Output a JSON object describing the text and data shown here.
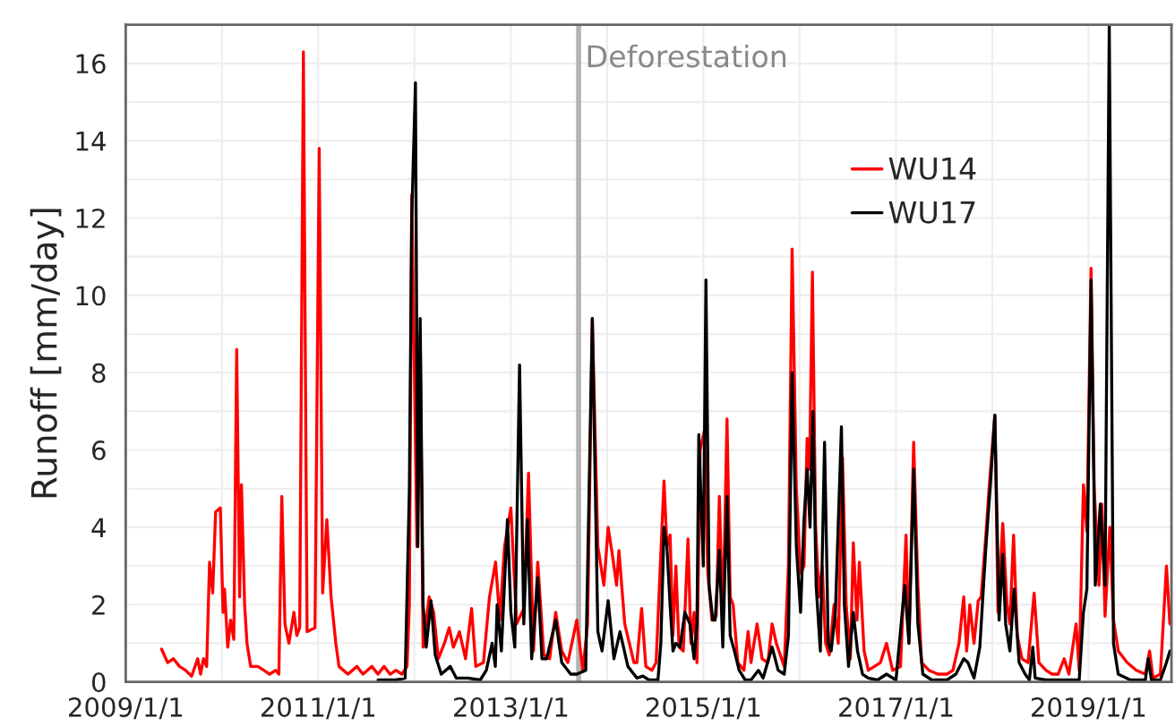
{
  "chart_data": {
    "type": "line",
    "ylabel": "Runoff [mm/day]",
    "xlim": [
      "2009-01-01",
      "2019-11-12"
    ],
    "xticks": [
      {
        "value": "2009-01-01",
        "label": "2009/1/1"
      },
      {
        "value": "2010-01-01",
        "label": null
      },
      {
        "value": "2011-01-01",
        "label": "2011/1/1"
      },
      {
        "value": "2012-01-01",
        "label": null
      },
      {
        "value": "2013-01-01",
        "label": "2013/1/1"
      },
      {
        "value": "2014-01-01",
        "label": null
      },
      {
        "value": "2015-01-01",
        "label": "2015/1/1"
      },
      {
        "value": "2016-01-01",
        "label": null
      },
      {
        "value": "2017-01-01",
        "label": "2017/1/1"
      },
      {
        "value": "2018-01-01",
        "label": null
      },
      {
        "value": "2019-01-01",
        "label": "2019/1/1"
      }
    ],
    "ylim": [
      0,
      17
    ],
    "yticks": [
      0,
      {
        "value": 1,
        "label": null
      },
      2,
      {
        "value": 3,
        "label": null
      },
      4,
      {
        "value": 5,
        "label": null
      },
      6,
      {
        "value": 7,
        "label": null
      },
      8,
      {
        "value": 9,
        "label": null
      },
      10,
      {
        "value": 11,
        "label": null
      },
      12,
      {
        "value": 13,
        "label": null
      },
      14,
      {
        "value": 15,
        "label": null
      },
      16
    ],
    "grid": true,
    "legend": "top right",
    "marker": "none",
    "line_style": "solid",
    "ref_lines": [
      {
        "axis": "x",
        "value": "2013-09-15",
        "label": "Deforestation",
        "color": "#b3b3b3"
      }
    ],
    "series": [
      {
        "name": "WU14",
        "color": "#ff0000",
        "x": [
          "2009-05-17",
          "2009-06-09",
          "2009-07-01",
          "2009-07-24",
          "2009-08-16",
          "2009-09-08",
          "2009-10-01",
          "2009-10-12",
          "2009-10-23",
          "2009-11-04",
          "2009-11-15",
          "2009-11-27",
          "2009-12-08",
          "2009-12-26",
          "2010-01-05",
          "2010-01-11",
          "2010-01-23",
          "2010-02-03",
          "2010-02-15",
          "2010-02-26",
          "2010-03-09",
          "2010-03-16",
          "2010-03-28",
          "2010-04-06",
          "2010-04-20",
          "2010-05-17",
          "2010-06-09",
          "2010-07-01",
          "2010-07-24",
          "2010-08-05",
          "2010-08-16",
          "2010-08-28",
          "2010-09-12",
          "2010-10-01",
          "2010-10-12",
          "2010-10-23",
          "2010-11-06",
          "2010-11-20",
          "2010-12-20",
          "2011-01-05",
          "2011-01-18",
          "2011-02-03",
          "2011-02-19",
          "2011-03-09",
          "2011-03-21",
          "2011-04-24",
          "2011-05-28",
          "2011-06-20",
          "2011-07-24",
          "2011-08-16",
          "2011-09-08",
          "2011-10-01",
          "2011-10-23",
          "2011-11-15",
          "2011-12-04",
          "2011-12-13",
          "2011-12-22",
          "2012-01-11",
          "2012-01-23",
          "2012-02-03",
          "2012-02-26",
          "2012-03-14",
          "2012-04-01",
          "2012-04-24",
          "2012-05-12",
          "2012-05-28",
          "2012-06-20",
          "2012-07-13",
          "2012-08-05",
          "2012-08-21",
          "2012-09-19",
          "2012-10-12",
          "2012-11-04",
          "2012-11-20",
          "2012-12-08",
          "2013-01-01",
          "2013-01-23",
          "2013-02-03",
          "2013-02-19",
          "2013-03-09",
          "2013-03-28",
          "2013-04-13",
          "2013-05-06",
          "2013-05-28",
          "2013-06-20",
          "2013-07-13",
          "2013-08-05",
          "2013-09-08",
          "2013-10-01",
          "2013-10-19",
          "2013-11-06",
          "2013-11-27",
          "2013-12-20",
          "2014-01-05",
          "2014-01-23",
          "2014-02-06",
          "2014-02-15",
          "2014-03-09",
          "2014-04-13",
          "2014-04-24",
          "2014-05-12",
          "2014-05-28",
          "2014-06-20",
          "2014-07-06",
          "2014-07-20",
          "2014-08-05",
          "2014-08-16",
          "2014-08-28",
          "2014-09-08",
          "2014-09-19",
          "2014-10-01",
          "2014-10-17",
          "2014-11-04",
          "2014-11-15",
          "2014-11-27",
          "2014-12-08",
          "2014-12-20",
          "2015-01-05",
          "2015-01-18",
          "2015-02-03",
          "2015-02-19",
          "2015-03-03",
          "2015-03-16",
          "2015-04-01",
          "2015-04-13",
          "2015-04-24",
          "2015-05-12",
          "2015-06-04",
          "2015-06-20",
          "2015-07-01",
          "2015-07-24",
          "2015-08-12",
          "2015-09-03",
          "2015-09-19",
          "2015-10-05",
          "2015-11-04",
          "2015-11-20",
          "2015-12-04",
          "2015-12-20",
          "2016-01-05",
          "2016-01-18",
          "2016-01-30",
          "2016-02-08",
          "2016-02-19",
          "2016-03-02",
          "2016-03-15",
          "2016-03-27",
          "2016-04-09",
          "2016-04-23",
          "2016-05-11",
          "2016-05-27",
          "2016-06-12",
          "2016-06-26",
          "2016-07-12",
          "2016-07-23",
          "2016-08-06",
          "2016-08-15",
          "2016-09-02",
          "2016-09-18",
          "2016-10-11",
          "2016-11-03",
          "2016-11-26",
          "2016-12-19",
          "2017-01-18",
          "2017-02-08",
          "2017-02-19",
          "2017-03-09",
          "2017-03-25",
          "2017-04-08",
          "2017-05-06",
          "2017-06-09",
          "2017-07-13",
          "2017-08-05",
          "2017-08-28",
          "2017-09-15",
          "2017-09-26",
          "2017-10-08",
          "2017-10-24",
          "2017-11-09",
          "2017-11-20",
          "2017-12-08",
          "2017-12-20",
          "2018-01-11",
          "2018-01-23",
          "2018-02-10",
          "2018-02-26",
          "2018-03-09",
          "2018-03-23",
          "2018-04-06",
          "2018-04-24",
          "2018-05-17",
          "2018-06-09",
          "2018-06-27",
          "2018-07-24",
          "2018-08-16",
          "2018-09-08",
          "2018-10-01",
          "2018-10-19",
          "2018-11-15",
          "2018-11-27",
          "2018-12-13",
          "2018-12-26",
          "2019-01-11",
          "2019-01-23",
          "2019-02-10",
          "2019-02-21",
          "2019-03-05",
          "2019-03-23",
          "2019-04-06",
          "2019-04-24",
          "2019-05-28",
          "2019-07-02",
          "2019-08-05",
          "2019-08-21",
          "2019-09-03",
          "2019-10-01",
          "2019-10-24",
          "2019-11-06"
        ],
        "values": [
          0.85,
          0.5,
          0.6,
          0.4,
          0.3,
          0.15,
          0.6,
          0.2,
          0.6,
          0.4,
          3.1,
          2.3,
          4.4,
          4.5,
          1.8,
          2.4,
          0.9,
          1.6,
          1.1,
          8.6,
          2.2,
          5.1,
          2.0,
          1.0,
          0.4,
          0.4,
          0.3,
          0.2,
          0.3,
          0.2,
          4.8,
          1.5,
          1.0,
          1.8,
          1.2,
          1.4,
          16.3,
          1.3,
          1.4,
          13.8,
          2.3,
          4.2,
          2.2,
          1.0,
          0.4,
          0.2,
          0.4,
          0.2,
          0.4,
          0.2,
          0.4,
          0.2,
          0.3,
          0.2,
          0.4,
          2.0,
          12.6,
          3.5,
          9.0,
          0.9,
          2.2,
          1.8,
          0.6,
          1.0,
          1.4,
          0.9,
          1.3,
          0.6,
          1.9,
          0.4,
          0.5,
          2.2,
          3.1,
          1.6,
          3.5,
          4.5,
          1.5,
          null,
          1.9,
          5.4,
          0.8,
          3.1,
          0.7,
          0.6,
          1.8,
          0.8,
          0.5,
          1.6,
          0.3,
          1.5,
          9.4,
          3.5,
          2.5,
          4.0,
          3.2,
          2.5,
          3.4,
          1.5,
          0.5,
          0.5,
          1.9,
          0.4,
          0.3,
          0.5,
          2.7,
          5.2,
          3.5,
          3.8,
          1.2,
          3.0,
          0.9,
          0.8,
          3.7,
          1.0,
          1.8,
          0.5,
          6.0,
          6.5,
          2.8,
          1.6,
          1.7,
          4.8,
          1.5,
          6.8,
          2.2,
          2.0,
          0.5,
          0.3,
          1.3,
          0.5,
          1.5,
          0.6,
          0.5,
          1.5,
          1.0,
          0.4,
          3.0,
          11.2,
          5.0,
          2.8,
          3.0,
          6.3,
          5.5,
          10.6,
          4.0,
          2.2,
          3.0,
          1.0,
          0.7,
          2.0,
          1.0,
          5.8,
          2.0,
          0.6,
          3.6,
          1.6,
          3.1,
          0.8,
          0.3,
          0.4,
          0.5,
          1.0,
          0.3,
          0.4,
          3.8,
          1.0,
          6.2,
          2.5,
          0.5,
          0.3,
          0.2,
          0.2,
          0.3,
          1.0,
          2.2,
          0.8,
          2.0,
          1.0,
          2.1,
          2.2,
          3.8,
          5.0,
          6.9,
          1.8,
          4.1,
          2.0,
          1.5,
          3.8,
          1.2,
          0.6,
          0.5,
          2.3,
          0.5,
          0.3,
          0.2,
          0.2,
          0.6,
          0.2,
          1.5,
          0.3,
          5.1,
          3.9,
          10.7,
          5.0,
          2.5,
          4.6,
          1.7,
          4.0,
          1.6,
          0.8,
          0.5,
          0.3,
          0.2,
          0.8,
          0.1,
          0.2,
          3.0,
          1.5
        ]
      },
      {
        "name": "WU17",
        "color": "#000000",
        "x": [
          "2011-08-16",
          "2011-10-23",
          "2011-11-27",
          "2011-12-13",
          "2011-12-22",
          "2012-01-05",
          "2012-01-14",
          "2012-01-23",
          "2012-02-03",
          "2012-02-15",
          "2012-03-04",
          "2012-03-20",
          "2012-04-12",
          "2012-05-16",
          "2012-06-08",
          "2012-07-23",
          "2012-09-07",
          "2012-09-30",
          "2012-10-22",
          "2012-11-03",
          "2012-11-10",
          "2012-11-26",
          "2012-12-19",
          "2013-01-01",
          "2013-01-16",
          "2013-02-03",
          "2013-02-19",
          "2013-03-05",
          "2013-03-21",
          "2013-04-13",
          "2013-04-29",
          "2013-05-17",
          "2013-06-20",
          "2013-07-13",
          "2013-08-16",
          "2013-09-08",
          "2013-10-12",
          "2013-11-06",
          "2013-11-27",
          "2013-12-13",
          "2014-01-05",
          "2014-01-27",
          "2014-02-19",
          "2014-03-21",
          "2014-04-24",
          "2014-05-17",
          "2014-06-09",
          "2014-07-13",
          "2014-07-24",
          "2014-08-05",
          "2014-08-16",
          "2014-08-28",
          "2014-09-08",
          "2014-09-19",
          "2014-10-05",
          "2014-10-23",
          "2014-11-11",
          "2014-11-27",
          "2014-12-08",
          "2014-12-15",
          "2015-01-01",
          "2015-01-11",
          "2015-01-23",
          "2015-02-06",
          "2015-02-15",
          "2015-03-03",
          "2015-03-16",
          "2015-04-01",
          "2015-04-13",
          "2015-04-29",
          "2015-05-17",
          "2015-06-09",
          "2015-07-01",
          "2015-07-29",
          "2015-08-16",
          "2015-09-19",
          "2015-10-12",
          "2015-11-04",
          "2015-11-20",
          "2015-12-04",
          "2015-12-20",
          "2016-01-05",
          "2016-01-18",
          "2016-01-30",
          "2016-02-10",
          "2016-02-21",
          "2016-03-04",
          "2016-03-20",
          "2016-04-05",
          "2016-04-19",
          "2016-04-30",
          "2016-05-16",
          "2016-06-08",
          "2016-06-19",
          "2016-07-05",
          "2016-07-23",
          "2016-08-08",
          "2016-08-27",
          "2016-09-18",
          "2016-10-23",
          "2016-11-26",
          "2017-01-01",
          "2017-02-03",
          "2017-02-19",
          "2017-03-09",
          "2017-03-25",
          "2017-04-13",
          "2017-05-17",
          "2017-07-13",
          "2017-08-16",
          "2017-09-15",
          "2017-10-01",
          "2017-10-24",
          "2017-11-15",
          "2017-12-08",
          "2017-12-26",
          "2018-01-11",
          "2018-01-27",
          "2018-02-10",
          "2018-02-21",
          "2018-03-09",
          "2018-03-25",
          "2018-04-13",
          "2018-05-06",
          "2018-05-22",
          "2018-06-04",
          "2018-06-13",
          "2018-07-24",
          "2018-10-01",
          "2018-11-27",
          "2018-12-13",
          "2018-12-26",
          "2019-01-11",
          "2019-01-27",
          "2019-02-15",
          "2019-03-05",
          "2019-03-21",
          "2019-04-06",
          "2019-04-24",
          "2019-06-09",
          "2019-08-05",
          "2019-08-16",
          "2019-08-28",
          "2019-10-01",
          "2019-10-24",
          "2019-11-06"
        ],
        "values": [
          0.05,
          0.05,
          0.1,
          5.0,
          12.0,
          15.5,
          3.5,
          9.4,
          2.0,
          0.9,
          2.1,
          0.7,
          0.2,
          0.4,
          0.1,
          0.1,
          0.05,
          0.3,
          1.0,
          0.4,
          2.0,
          0.8,
          4.2,
          1.8,
          0.9,
          8.2,
          1.5,
          4.2,
          0.6,
          2.7,
          0.6,
          0.6,
          1.6,
          0.5,
          0.2,
          0.2,
          0.3,
          9.4,
          1.3,
          0.8,
          2.1,
          0.6,
          1.3,
          0.4,
          0.1,
          0.15,
          0.05,
          0.05,
          1.0,
          4.0,
          3.5,
          2.0,
          0.8,
          1.0,
          0.9,
          1.8,
          1.5,
          0.6,
          1.5,
          6.4,
          3.0,
          10.4,
          2.5,
          1.6,
          1.6,
          3.4,
          0.9,
          4.8,
          1.2,
          0.8,
          0.3,
          0.05,
          0.05,
          0.3,
          0.1,
          0.9,
          0.3,
          0.2,
          1.2,
          8.0,
          3.5,
          1.8,
          4.2,
          5.5,
          4.0,
          7.0,
          2.5,
          0.8,
          6.2,
          1.0,
          0.8,
          1.8,
          6.6,
          2.0,
          0.4,
          1.8,
          0.8,
          0.2,
          0.1,
          0.05,
          0.2,
          0.05,
          2.5,
          1.0,
          5.5,
          1.5,
          0.2,
          0.05,
          0.05,
          0.2,
          0.6,
          0.5,
          0.1,
          0.9,
          3.5,
          5.2,
          6.9,
          1.6,
          3.3,
          1.5,
          0.8,
          2.4,
          0.5,
          0.2,
          0.05,
          0.9,
          0.1,
          0.05,
          0.05,
          0.05,
          1.8,
          2.4,
          10.4,
          2.5,
          4.6,
          2.5,
          17,
          1.0,
          0.2,
          0.05,
          0.05,
          0.6,
          0.05,
          0.05,
          0.5,
          0.8
        ]
      }
    ]
  }
}
